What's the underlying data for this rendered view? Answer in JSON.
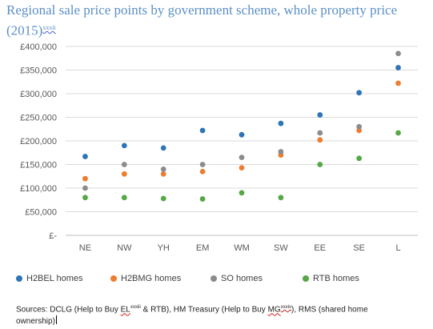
{
  "title": {
    "text": "Regional sale price points by government scheme, whole property price (2015)",
    "footnote": "xxxii"
  },
  "chart_data": {
    "type": "scatter",
    "categories": [
      "NE",
      "NW",
      "YH",
      "EM",
      "WM",
      "SW",
      "EE",
      "SE",
      "L"
    ],
    "series": [
      {
        "name": "H2BEL homes",
        "color": "#2e75b6",
        "values": [
          167000,
          190000,
          185000,
          222000,
          213000,
          237000,
          255000,
          302000,
          355000
        ]
      },
      {
        "name": "H2BMG homes",
        "color": "#ed7d31",
        "values": [
          120000,
          130000,
          130000,
          135000,
          143000,
          170000,
          202000,
          222000,
          322000
        ]
      },
      {
        "name": "SO homes",
        "color": "#8c8c8c",
        "values": [
          100000,
          150000,
          140000,
          150000,
          165000,
          177000,
          217000,
          230000,
          385000
        ]
      },
      {
        "name": "RTB homes",
        "color": "#55a845",
        "values": [
          80000,
          80000,
          78000,
          77000,
          90000,
          80000,
          150000,
          163000,
          217000
        ]
      }
    ],
    "y_ticks": [
      "£-",
      "£50,000",
      "£100,000",
      "£150,000",
      "£200,000",
      "£250,000",
      "£300,000",
      "£350,000",
      "£400,000"
    ],
    "ylim": [
      0,
      400000
    ],
    "grid": true,
    "legend_position": "bottom"
  },
  "source": {
    "prefix": "Sources: DCLG (Help to Buy ",
    "el": "EL",
    "el_fn": "xxxiii",
    "mid": " & RTB), HM Treasury (Help to Buy ",
    "mg": "MG",
    "mg_fn": "xxxiv",
    "suffix": "), RMS (shared home ownership)"
  }
}
